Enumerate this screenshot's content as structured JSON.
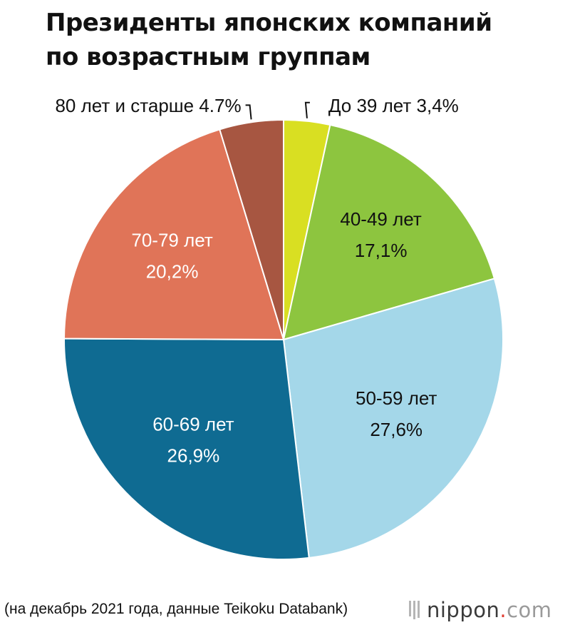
{
  "title": {
    "line1": "Президенты японских компаний",
    "line2": "по возрастным группам"
  },
  "chart_data": {
    "type": "pie",
    "start_angle_deg": 0,
    "direction": "clockwise",
    "slices": [
      {
        "label": "До 39 лет",
        "value_text": "3,4%",
        "value": 3.4,
        "color": "#d9df22",
        "text_color": "#111111",
        "label_position": "outside-top-right"
      },
      {
        "label": "40-49 лет",
        "value_text": "17,1%",
        "value": 17.1,
        "color": "#8dc53f",
        "text_color": "#111111",
        "label_position": "inside"
      },
      {
        "label": "50-59 лет",
        "value_text": "27,6%",
        "value": 27.6,
        "color": "#a4d7e9",
        "text_color": "#111111",
        "label_position": "inside"
      },
      {
        "label": "60-69 лет",
        "value_text": "26,9%",
        "value": 26.9,
        "color": "#0f6b92",
        "text_color": "#ffffff",
        "label_position": "inside"
      },
      {
        "label": "70-79 лет",
        "value_text": "20,2%",
        "value": 20.2,
        "color": "#e07458",
        "text_color": "#ffffff",
        "label_position": "inside"
      },
      {
        "label": "80 лет и старше",
        "value_text": "4.7%",
        "value": 4.7,
        "color": "#a75641",
        "text_color": "#111111",
        "label_position": "outside-top-left"
      }
    ],
    "legend": "none"
  },
  "footer": {
    "source": "(на декабрь 2021 года, данные Teikoku Databank)",
    "logo_main": "nippon",
    "logo_dot": ".",
    "logo_tld": "com"
  }
}
